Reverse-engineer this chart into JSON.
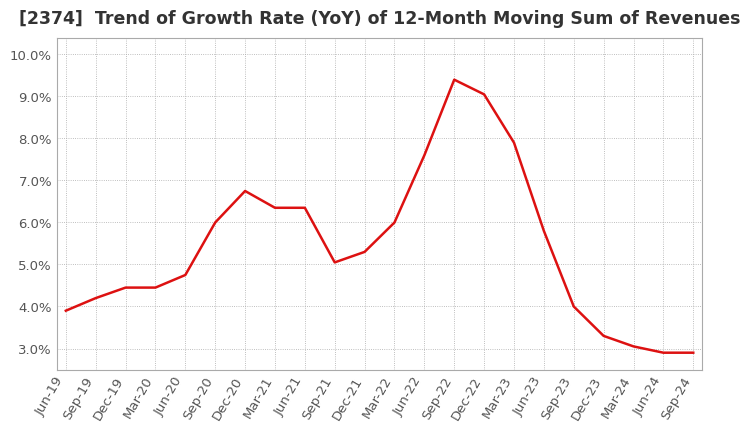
{
  "title": "[2374]  Trend of Growth Rate (YoY) of 12-Month Moving Sum of Revenues",
  "title_fontsize": 12.5,
  "x_labels": [
    "Jun-19",
    "Sep-19",
    "Dec-19",
    "Mar-20",
    "Jun-20",
    "Sep-20",
    "Dec-20",
    "Mar-21",
    "Jun-21",
    "Sep-21",
    "Dec-21",
    "Mar-22",
    "Jun-22",
    "Sep-22",
    "Dec-22",
    "Mar-23",
    "Jun-23",
    "Sep-23",
    "Dec-23",
    "Mar-24",
    "Jun-24",
    "Sep-24"
  ],
  "y_values": [
    3.9,
    4.2,
    4.45,
    4.45,
    4.75,
    6.0,
    6.75,
    6.35,
    6.35,
    5.05,
    5.3,
    6.0,
    7.6,
    9.4,
    9.05,
    7.9,
    5.8,
    4.0,
    3.3,
    3.05,
    2.9,
    2.9
  ],
  "ylim": [
    2.5,
    10.4
  ],
  "yticks": [
    3.0,
    4.0,
    5.0,
    6.0,
    7.0,
    8.0,
    9.0,
    10.0
  ],
  "ytick_labels": [
    "3.0%",
    "4.0%",
    "5.0%",
    "6.0%",
    "7.0%",
    "8.0%",
    "9.0%",
    "10.0%"
  ],
  "line_color": "#dd1111",
  "background_color": "#ffffff",
  "grid_color": "#aaaaaa",
  "tick_label_color": "#555555",
  "tick_fontsize": 9.5
}
